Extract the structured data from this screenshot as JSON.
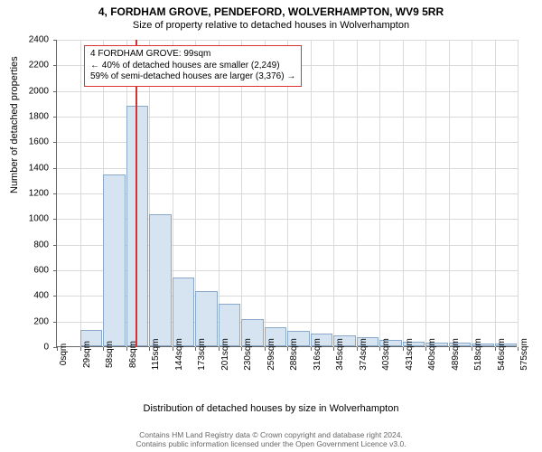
{
  "title": "4, FORDHAM GROVE, PENDEFORD, WOLVERHAMPTON, WV9 5RR",
  "subtitle": "Size of property relative to detached houses in Wolverhampton",
  "ylabel": "Number of detached properties",
  "xlabel": "Distribution of detached houses by size in Wolverhampton",
  "chart": {
    "type": "histogram",
    "ylim": [
      0,
      2400
    ],
    "ytick_step": 200,
    "xticks": [
      0,
      29,
      58,
      86,
      115,
      144,
      173,
      201,
      230,
      259,
      288,
      316,
      345,
      374,
      403,
      431,
      460,
      489,
      518,
      546,
      575
    ],
    "xtick_unit": "sqm",
    "bar_color": "#d6e4f2",
    "bar_border_color": "#8aa8c8",
    "grid_color": "#d9d9d9",
    "axis_color": "#666666",
    "background_color": "#ffffff",
    "reference_line": {
      "x_index": 3.43,
      "color": "#d33333"
    },
    "values": [
      0,
      130,
      1340,
      1880,
      1030,
      540,
      430,
      330,
      210,
      145,
      120,
      100,
      85,
      70,
      50,
      35,
      25,
      25,
      20,
      20
    ]
  },
  "annotation": {
    "line1": "4 FORDHAM GROVE: 99sqm",
    "line2": "← 40% of detached houses are smaller (2,249)",
    "line3": "59% of semi-detached houses are larger (3,376) →",
    "border_color": "#d33333"
  },
  "footer": {
    "line1": "Contains HM Land Registry data © Crown copyright and database right 2024.",
    "line2": "Contains public information licensed under the Open Government Licence v3.0."
  },
  "fonts": {
    "title_size": 12,
    "subtitle_size": 11,
    "label_size": 11,
    "tick_size": 10,
    "annotation_size": 10,
    "footer_size": 8.5
  }
}
